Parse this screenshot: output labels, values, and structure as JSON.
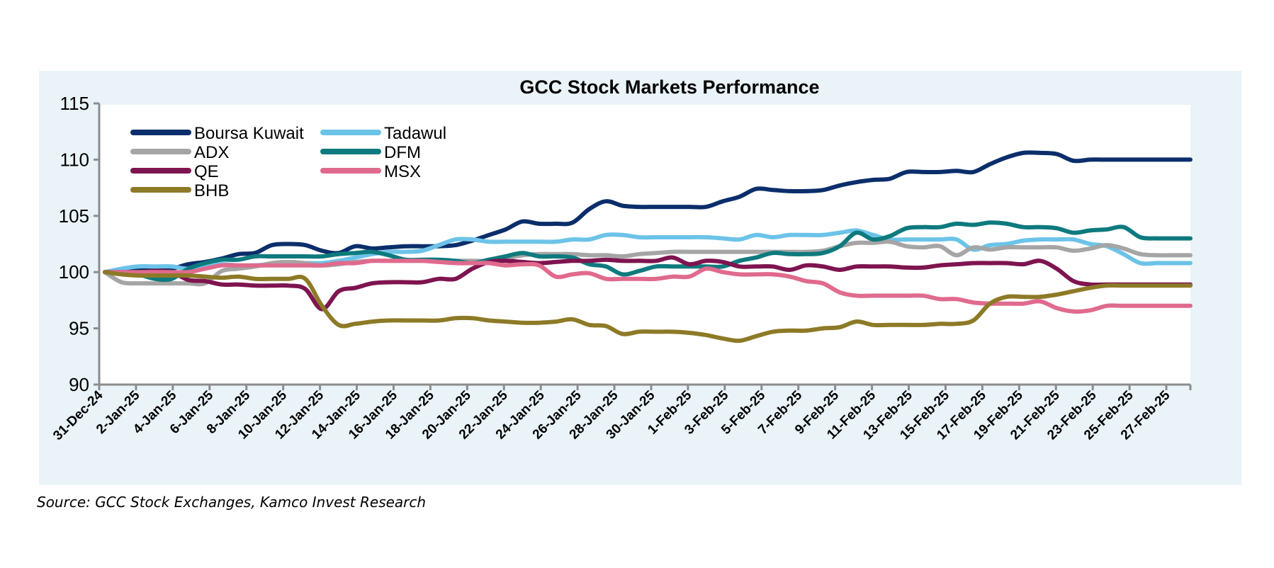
{
  "chart_data": {
    "type": "line",
    "title": "GCC Stock Markets Performance",
    "xlabel": "",
    "ylabel": "",
    "ylim": [
      90,
      115
    ],
    "yticks": [
      90,
      95,
      100,
      105,
      110,
      115
    ],
    "grid": false,
    "legend_position": "top-left",
    "x_start": "31-Dec-24",
    "x_end": "28-Feb-25",
    "x_tick_labels": [
      "31-Dec-24",
      "2-Jan-25",
      "4-Jan-25",
      "6-Jan-25",
      "8-Jan-25",
      "10-Jan-25",
      "12-Jan-25",
      "14-Jan-25",
      "16-Jan-25",
      "18-Jan-25",
      "20-Jan-25",
      "22-Jan-25",
      "24-Jan-25",
      "26-Jan-25",
      "28-Jan-25",
      "30-Jan-25",
      "1-Feb-25",
      "3-Feb-25",
      "5-Feb-25",
      "7-Feb-25",
      "9-Feb-25",
      "11-Feb-25",
      "13-Feb-25",
      "15-Feb-25",
      "17-Feb-25",
      "19-Feb-25",
      "21-Feb-25",
      "23-Feb-25",
      "25-Feb-25",
      "27-Feb-25"
    ],
    "series": [
      {
        "name": "Boursa Kuwait",
        "color": "#0b2e6b",
        "values": [
          100,
          100.1,
          100.2,
          100.2,
          100.3,
          100.7,
          100.9,
          101.2,
          101.6,
          101.7,
          102.4,
          102.5,
          102.4,
          101.9,
          101.7,
          102.3,
          102.1,
          102.2,
          102.3,
          102.3,
          102.3,
          102.4,
          102.8,
          103.3,
          103.8,
          104.5,
          104.3,
          104.3,
          104.4,
          105.6,
          106.3,
          105.9,
          105.8,
          105.8,
          105.8,
          105.8,
          105.8,
          106.3,
          106.7,
          107.4,
          107.3,
          107.2,
          107.2,
          107.3,
          107.7,
          108.0,
          108.2,
          108.3,
          108.9,
          108.9,
          108.9,
          109.0,
          108.9,
          109.6,
          110.2,
          110.6,
          110.6,
          110.5,
          109.9,
          110.0,
          110.0,
          110.0,
          110.0,
          110.0,
          110.0,
          110.0
        ]
      },
      {
        "name": "Tadawul",
        "color": "#6cc3e8",
        "values": [
          100,
          100.3,
          100.5,
          100.5,
          100.5,
          100.3,
          100.6,
          100.7,
          100.6,
          100.6,
          100.7,
          100.7,
          100.8,
          100.8,
          101.0,
          101.3,
          101.6,
          101.8,
          101.8,
          101.9,
          102.4,
          102.9,
          102.9,
          102.7,
          102.7,
          102.7,
          102.7,
          102.7,
          102.9,
          102.9,
          103.3,
          103.3,
          103.1,
          103.1,
          103.1,
          103.1,
          103.1,
          103.0,
          102.9,
          103.3,
          103.1,
          103.3,
          103.3,
          103.3,
          103.5,
          103.7,
          103.3,
          102.9,
          102.9,
          102.9,
          102.9,
          102.9,
          102.0,
          102.4,
          102.5,
          102.8,
          102.9,
          102.9,
          102.9,
          102.5,
          102.3,
          101.6,
          100.8,
          100.8,
          100.8,
          100.8
        ]
      },
      {
        "name": "ADX",
        "color": "#a5a5a5",
        "values": [
          100,
          99.1,
          99.0,
          99.0,
          99.0,
          99.0,
          99.0,
          100.1,
          100.3,
          100.5,
          100.8,
          100.9,
          100.8,
          100.6,
          100.7,
          100.9,
          101.0,
          101.0,
          101.0,
          101.0,
          101.0,
          101.0,
          101.0,
          101.0,
          101.2,
          101.5,
          101.6,
          101.6,
          101.6,
          101.5,
          101.5,
          101.4,
          101.6,
          101.7,
          101.8,
          101.8,
          101.8,
          101.8,
          101.8,
          101.8,
          101.8,
          101.8,
          101.8,
          101.9,
          102.3,
          102.6,
          102.6,
          102.7,
          102.3,
          102.2,
          102.3,
          101.5,
          102.2,
          102.0,
          102.2,
          102.2,
          102.2,
          102.2,
          101.9,
          102.1,
          102.4,
          102.1,
          101.6,
          101.5,
          101.5,
          101.5
        ]
      },
      {
        "name": "DFM",
        "color": "#0e7a7e",
        "values": [
          100,
          99.9,
          99.8,
          99.4,
          99.4,
          100.3,
          100.8,
          101.1,
          101.1,
          101.4,
          101.4,
          101.4,
          101.4,
          101.4,
          101.6,
          101.7,
          101.8,
          101.5,
          101.1,
          101.1,
          101.1,
          101.0,
          100.8,
          101.1,
          101.4,
          101.7,
          101.4,
          101.4,
          101.3,
          100.7,
          100.5,
          99.8,
          100.1,
          100.5,
          100.5,
          100.5,
          100.5,
          100.5,
          101.0,
          101.3,
          101.7,
          101.6,
          101.6,
          101.7,
          102.3,
          103.5,
          102.9,
          103.2,
          103.9,
          104.0,
          104.0,
          104.3,
          104.2,
          104.4,
          104.3,
          104.0,
          104.0,
          103.9,
          103.5,
          103.7,
          103.8,
          104.0,
          103.1,
          103.0,
          103.0,
          103.0
        ]
      },
      {
        "name": "QE",
        "color": "#7e1450",
        "values": [
          100,
          100,
          100,
          100.1,
          100,
          99.3,
          99.2,
          98.9,
          98.9,
          98.8,
          98.8,
          98.8,
          98.5,
          96.7,
          98.3,
          98.6,
          99.0,
          99.1,
          99.1,
          99.1,
          99.4,
          99.4,
          100.3,
          100.9,
          101.0,
          100.9,
          100.8,
          100.9,
          101.0,
          101.0,
          101.1,
          101.0,
          101.0,
          101.0,
          101.3,
          100.7,
          101.0,
          100.9,
          100.5,
          100.5,
          100.5,
          100.2,
          100.6,
          100.5,
          100.2,
          100.5,
          100.5,
          100.5,
          100.4,
          100.4,
          100.6,
          100.7,
          100.8,
          100.8,
          100.8,
          100.7,
          101.0,
          100.3,
          99.2,
          98.9,
          98.9,
          98.9,
          98.9,
          98.9,
          98.9,
          98.9
        ]
      },
      {
        "name": "MSX",
        "color": "#e06a8e",
        "values": [
          100,
          100,
          100,
          100,
          100,
          100,
          100.3,
          100.6,
          100.6,
          100.6,
          100.6,
          100.6,
          100.6,
          100.6,
          100.8,
          100.8,
          101.0,
          101.0,
          101.0,
          101.0,
          100.9,
          100.8,
          100.8,
          100.8,
          100.6,
          100.7,
          100.6,
          99.6,
          99.8,
          99.9,
          99.4,
          99.4,
          99.4,
          99.4,
          99.6,
          99.6,
          100.3,
          100.0,
          99.8,
          99.8,
          99.8,
          99.6,
          99.2,
          99.0,
          98.2,
          97.9,
          97.9,
          97.9,
          97.9,
          97.9,
          97.6,
          97.6,
          97.3,
          97.2,
          97.2,
          97.2,
          97.4,
          96.8,
          96.5,
          96.6,
          97.0,
          97.0,
          97.0,
          97.0,
          97.0,
          97.0
        ]
      },
      {
        "name": "BHB",
        "color": "#8d7a27",
        "values": [
          100,
          99.8,
          99.7,
          99.7,
          99.7,
          99.7,
          99.6,
          99.5,
          99.6,
          99.4,
          99.4,
          99.4,
          99.4,
          97.0,
          95.3,
          95.4,
          95.6,
          95.7,
          95.7,
          95.7,
          95.7,
          95.9,
          95.9,
          95.7,
          95.6,
          95.5,
          95.5,
          95.6,
          95.8,
          95.3,
          95.2,
          94.5,
          94.7,
          94.7,
          94.7,
          94.6,
          94.4,
          94.1,
          93.9,
          94.3,
          94.7,
          94.8,
          94.8,
          95.0,
          95.1,
          95.6,
          95.3,
          95.3,
          95.3,
          95.3,
          95.4,
          95.4,
          95.7,
          97.2,
          97.8,
          97.8,
          97.8,
          98.0,
          98.3,
          98.6,
          98.8,
          98.8,
          98.8,
          98.8,
          98.8,
          98.8
        ]
      }
    ]
  },
  "source": "Source: GCC Stock Exchanges, Kamco Invest Research"
}
